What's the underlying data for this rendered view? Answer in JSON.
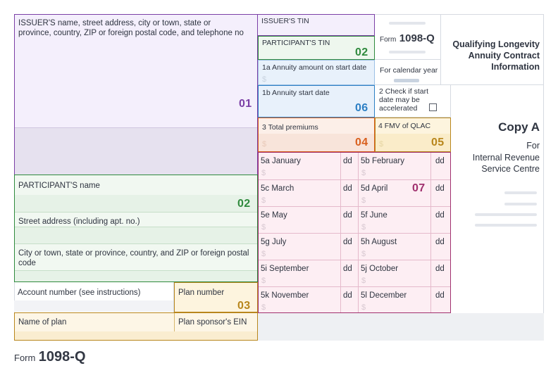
{
  "issuer": {
    "label": "ISSUER'S name, street address, city or town, state or province, country, ZIP or foreign postal code, and telephone no",
    "code": "01",
    "tin_label": "ISSUER'S TIN"
  },
  "participant": {
    "tin_label": "PARTICIPANT'S TIN",
    "tin_code": "02",
    "name_label": "PARTICIPANT'S name",
    "name_code": "02",
    "street_label": "Street address (including apt. no.)",
    "city_label": "City or town, state or province, country, and ZIP or foreign postal code"
  },
  "account": {
    "account_label": "Account number (see instructions)",
    "plan_number_label": "Plan number",
    "plan_number_code": "03",
    "plan_name_label": "Name of plan",
    "sponsor_ein_label": "Plan sponsor's EIN"
  },
  "header": {
    "form_prefix": "Form",
    "form_number": "1098-Q",
    "calendar_year_label": "For calendar year",
    "title": "Qualifying Longevity Annuity Contract Information"
  },
  "boxes": {
    "b1a_label": "1a Annuity amount on start date",
    "b1b_label": "1b Annuity start date",
    "b1b_code": "06",
    "b2_label": "2 Check if start date may be accelerated",
    "b3_label": "3 Total premiums",
    "b3_code": "04",
    "b4_label": "4 FMV of QLAC",
    "b4_code": "05",
    "dollar": "$"
  },
  "months": {
    "dd": "dd",
    "code": "07",
    "rows": [
      {
        "left": "5a January",
        "right": "5b February"
      },
      {
        "left": "5c March",
        "right": "5d April"
      },
      {
        "left": "5e May",
        "right": "5f June"
      },
      {
        "left": "5g July",
        "right": "5h August"
      },
      {
        "left": "5i  September",
        "right": "5j  October"
      },
      {
        "left": "5k  November",
        "right": "5l  December"
      }
    ]
  },
  "copy": {
    "title": "Copy A",
    "line1": "For",
    "line2": "Internal Revenue Service Centre"
  },
  "footer": {
    "form_prefix": "Form",
    "form_number": "1098-Q"
  },
  "colors": {
    "purple": "#7b3fa6",
    "green": "#2f8a3d",
    "blue": "#2c7fc4",
    "orange": "#d9601e",
    "gold": "#b8861c",
    "magenta": "#a0306e"
  }
}
